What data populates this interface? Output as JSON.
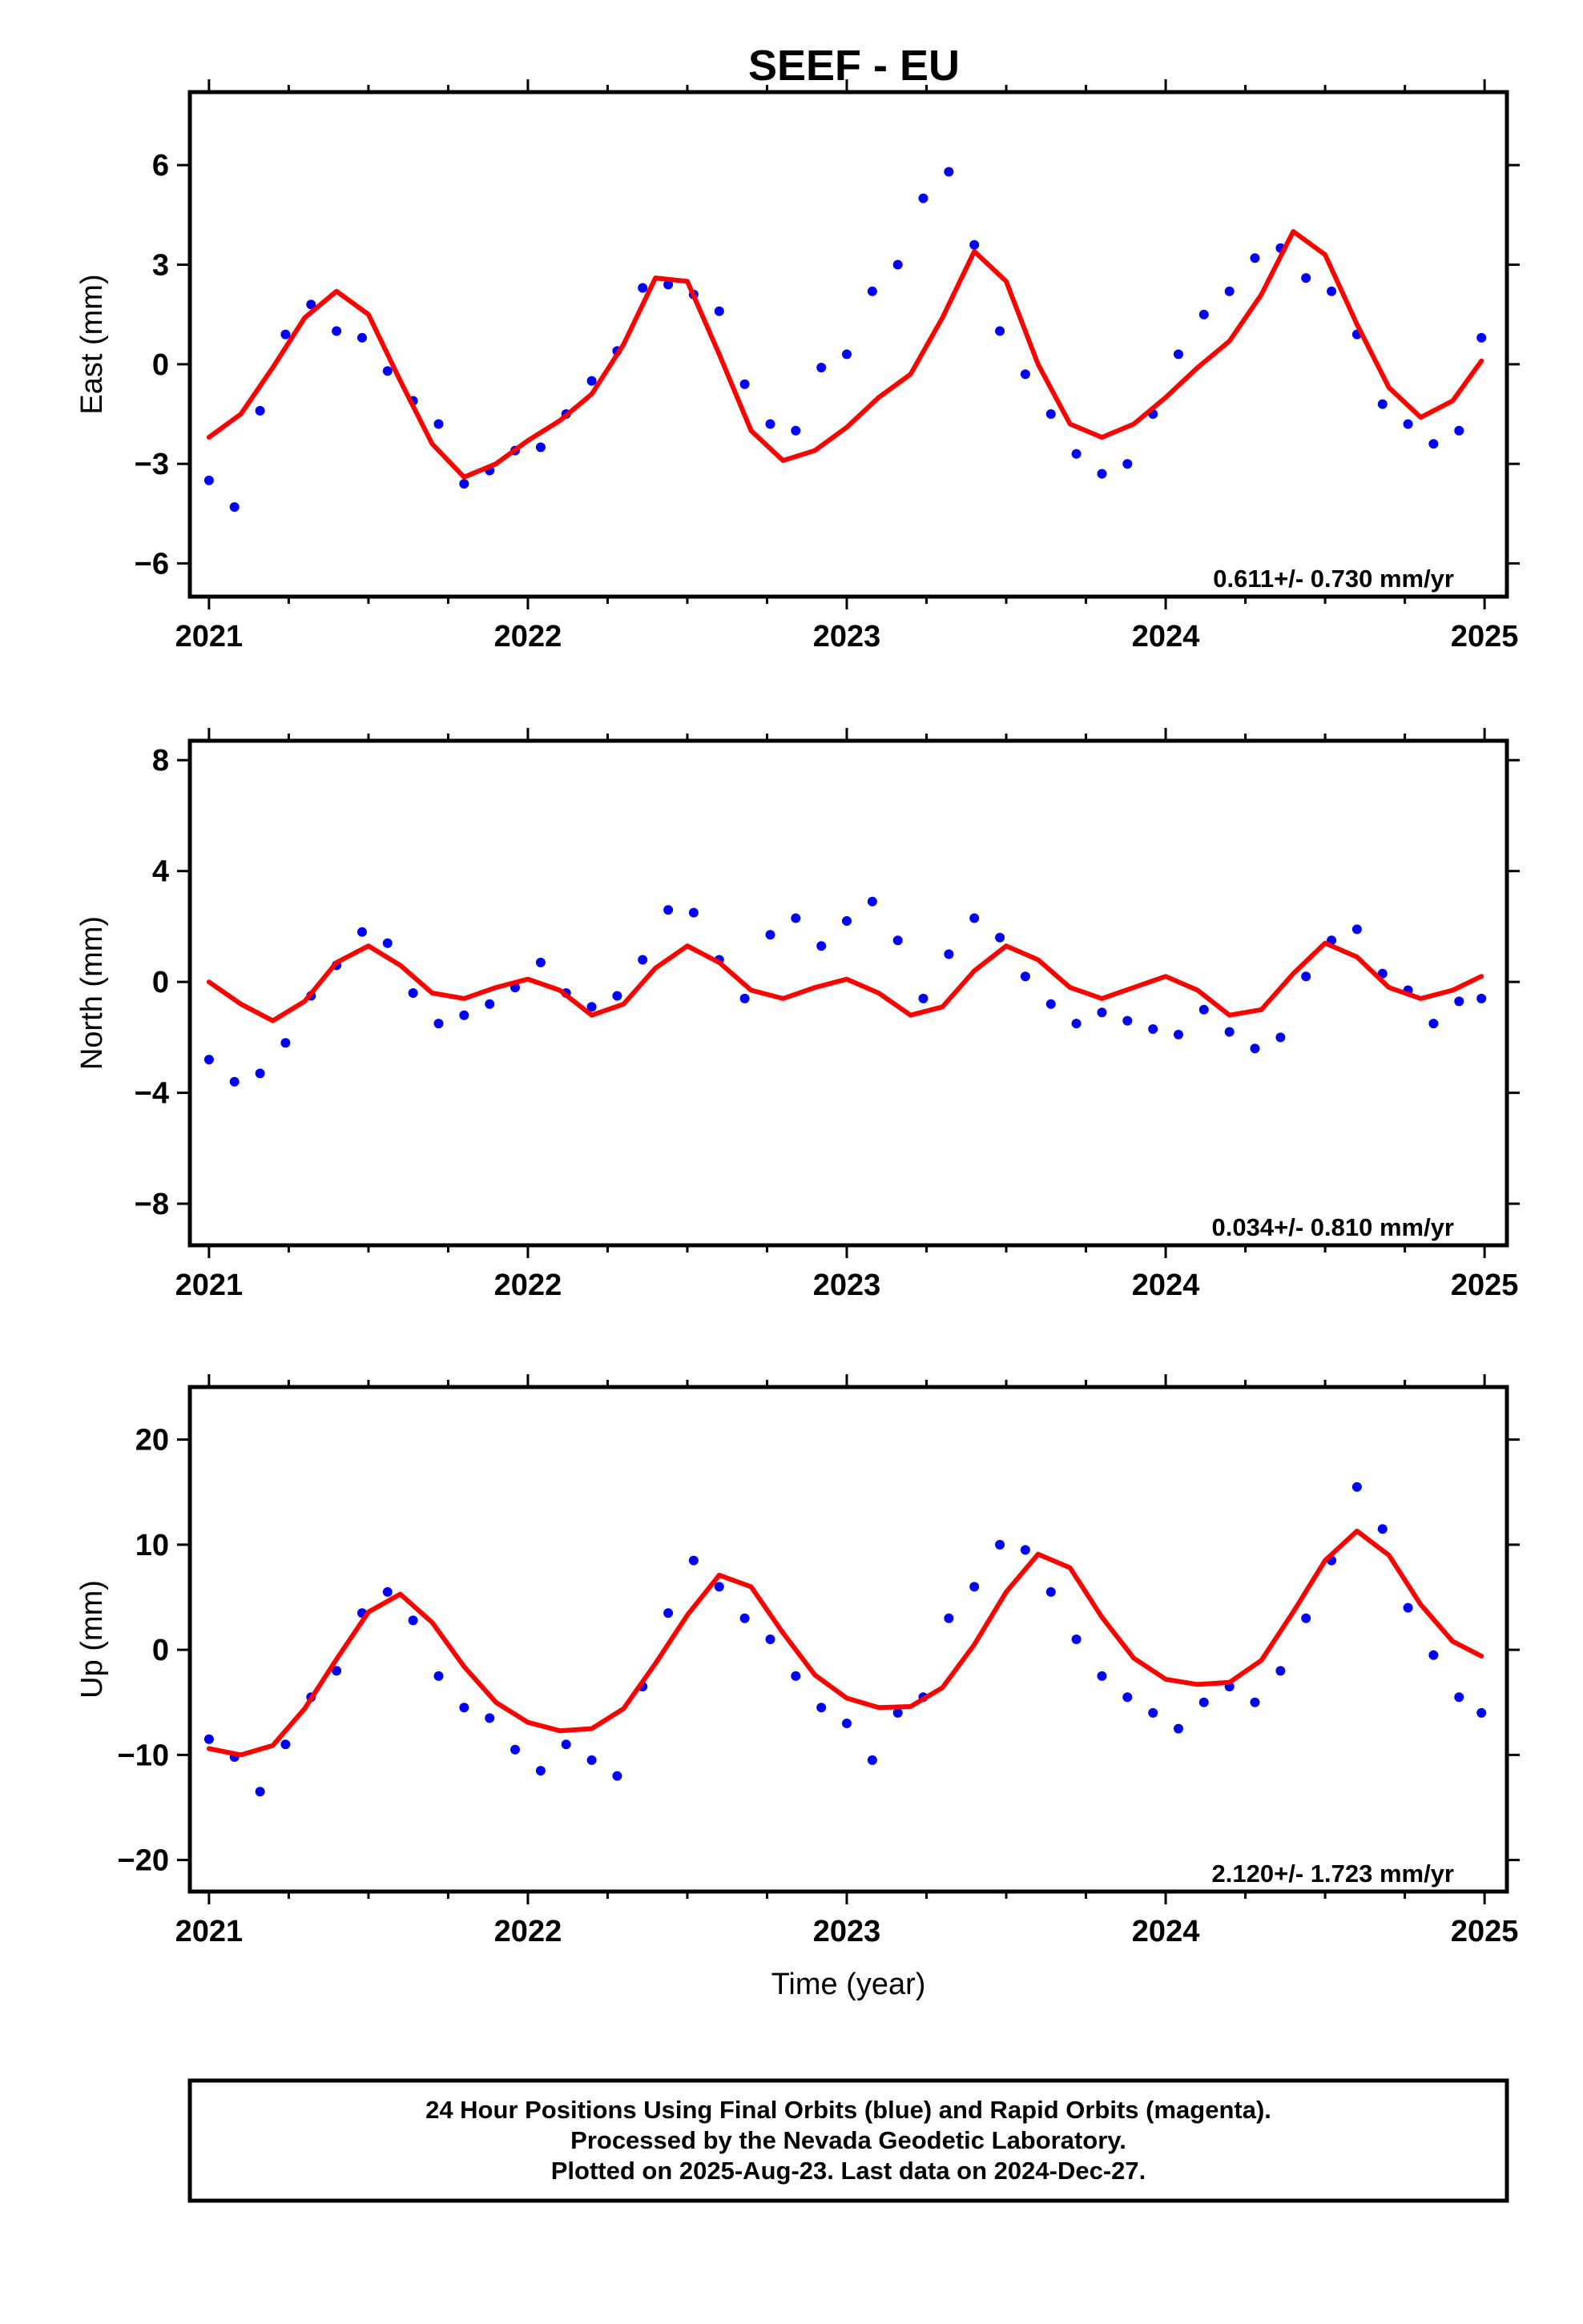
{
  "title": "SEEF - EU",
  "footer": {
    "lines": [
      "24 Hour Positions Using Final Orbits (blue) and Rapid Orbits (magenta).",
      "Processed by the Nevada Geodetic Laboratory.",
      "Plotted on 2025-Aug-23. Last data on 2024-Dec-27."
    ]
  },
  "colors": {
    "final_orbits": "#0000ff",
    "rapid_orbits": "#ff00ff",
    "model": "#ff0000",
    "frame": "#000000"
  },
  "chart_data": [
    {
      "type": "scatter",
      "title": "SEEF - EU",
      "ylabel": "East (mm)",
      "xlabel": "",
      "xlim": [
        2020.94,
        2025.07
      ],
      "ylim": [
        -7.0,
        8.2
      ],
      "x_ticks": [
        2021,
        2022,
        2023,
        2024,
        2025
      ],
      "x_tick_labels": [
        "2021",
        "2022",
        "2023",
        "2024",
        "2025"
      ],
      "y_ticks": [
        -6,
        -3,
        0,
        3,
        6
      ],
      "y_tick_labels": [
        "−6",
        "−3",
        "0",
        "3",
        "6"
      ],
      "rate_label": "0.611+/- 0.730 mm/yr",
      "grid": false,
      "series": [
        {
          "role": "final_orbits",
          "x": [
            2021.0,
            2021.08,
            2021.16,
            2021.24,
            2021.32,
            2021.4,
            2021.48,
            2021.56,
            2021.64,
            2021.72,
            2021.8,
            2021.88,
            2021.96,
            2022.04,
            2022.12,
            2022.2,
            2022.28,
            2022.36,
            2022.44,
            2022.52,
            2022.6,
            2022.68,
            2022.76,
            2022.84,
            2022.92,
            2023.0,
            2023.08,
            2023.16,
            2023.24,
            2023.32,
            2023.4,
            2023.48,
            2023.56,
            2023.64,
            2023.72,
            2023.8,
            2023.88,
            2023.96,
            2024.04,
            2024.12,
            2024.2,
            2024.28,
            2024.36,
            2024.44,
            2024.52,
            2024.6,
            2024.68,
            2024.76,
            2024.84,
            2024.92,
            2024.99
          ],
          "y": [
            -3.5,
            -4.3,
            -1.4,
            0.9,
            1.8,
            1.0,
            0.8,
            -0.2,
            -1.1,
            -1.8,
            -3.6,
            -3.2,
            -2.6,
            -2.5,
            -1.5,
            -0.5,
            0.4,
            2.3,
            2.4,
            2.1,
            1.6,
            -0.6,
            -1.8,
            -2.0,
            -0.1,
            0.3,
            2.2,
            3.0,
            5.0,
            5.8,
            3.6,
            1.0,
            -0.3,
            -1.5,
            -2.7,
            -3.3,
            -3.0,
            -1.5,
            0.3,
            1.5,
            2.2,
            3.2,
            3.5,
            2.6,
            2.2,
            0.9,
            -1.2,
            -1.8,
            -2.4,
            -2.0,
            0.8
          ]
        },
        {
          "role": "model",
          "x": [
            2021.0,
            2021.1,
            2021.2,
            2021.3,
            2021.4,
            2021.5,
            2021.6,
            2021.7,
            2021.8,
            2021.9,
            2022.0,
            2022.1,
            2022.2,
            2022.3,
            2022.4,
            2022.5,
            2022.6,
            2022.7,
            2022.8,
            2022.9,
            2023.0,
            2023.1,
            2023.2,
            2023.3,
            2023.4,
            2023.5,
            2023.6,
            2023.7,
            2023.8,
            2023.9,
            2024.0,
            2024.1,
            2024.2,
            2024.3,
            2024.4,
            2024.5,
            2024.6,
            2024.7,
            2024.8,
            2024.9,
            2024.99
          ],
          "y": [
            -2.2,
            -1.5,
            -0.1,
            1.4,
            2.2,
            1.5,
            -0.5,
            -2.4,
            -3.4,
            -3.0,
            -2.3,
            -1.7,
            -0.9,
            0.6,
            2.6,
            2.5,
            0.3,
            -2.0,
            -2.9,
            -2.6,
            -1.9,
            -1.0,
            -0.3,
            1.4,
            3.4,
            2.5,
            0.0,
            -1.8,
            -2.2,
            -1.8,
            -1.0,
            -0.1,
            0.7,
            2.1,
            4.0,
            3.3,
            1.2,
            -0.7,
            -1.6,
            -1.1,
            0.1
          ]
        }
      ]
    },
    {
      "type": "scatter",
      "ylabel": "North (mm)",
      "xlabel": "",
      "xlim": [
        2020.94,
        2025.07
      ],
      "ylim": [
        -9.5,
        8.7
      ],
      "x_ticks": [
        2021,
        2022,
        2023,
        2024,
        2025
      ],
      "x_tick_labels": [
        "2021",
        "2022",
        "2023",
        "2024",
        "2025"
      ],
      "y_ticks": [
        -8,
        -4,
        0,
        4,
        8
      ],
      "y_tick_labels": [
        "−8",
        "−4",
        "0",
        "4",
        "8"
      ],
      "rate_label": "0.034+/- 0.810 mm/yr",
      "grid": false,
      "series": [
        {
          "role": "final_orbits",
          "x": [
            2021.0,
            2021.08,
            2021.16,
            2021.24,
            2021.32,
            2021.4,
            2021.48,
            2021.56,
            2021.64,
            2021.72,
            2021.8,
            2021.88,
            2021.96,
            2022.04,
            2022.12,
            2022.2,
            2022.28,
            2022.36,
            2022.44,
            2022.52,
            2022.6,
            2022.68,
            2022.76,
            2022.84,
            2022.92,
            2023.0,
            2023.08,
            2023.16,
            2023.24,
            2023.32,
            2023.4,
            2023.48,
            2023.56,
            2023.64,
            2023.72,
            2023.8,
            2023.88,
            2023.96,
            2024.04,
            2024.12,
            2024.2,
            2024.28,
            2024.36,
            2024.44,
            2024.52,
            2024.6,
            2024.68,
            2024.76,
            2024.84,
            2024.92,
            2024.99
          ],
          "y": [
            -2.8,
            -3.6,
            -3.3,
            -2.2,
            -0.5,
            0.6,
            1.8,
            1.4,
            -0.4,
            -1.5,
            -1.2,
            -0.8,
            -0.2,
            0.7,
            -0.4,
            -0.9,
            -0.5,
            0.8,
            2.6,
            2.5,
            0.8,
            -0.6,
            1.7,
            2.3,
            1.3,
            2.2,
            2.9,
            1.5,
            -0.6,
            1.0,
            2.3,
            1.6,
            0.2,
            -0.8,
            -1.5,
            -1.1,
            -1.4,
            -1.7,
            -1.9,
            -1.0,
            -1.8,
            -2.4,
            -2.0,
            0.2,
            1.5,
            1.9,
            0.3,
            -0.3,
            -1.5,
            -0.7,
            -0.6
          ]
        },
        {
          "role": "model",
          "x": [
            2021.0,
            2021.1,
            2021.2,
            2021.3,
            2021.4,
            2021.5,
            2021.6,
            2021.7,
            2021.8,
            2021.9,
            2022.0,
            2022.1,
            2022.2,
            2022.3,
            2022.4,
            2022.5,
            2022.6,
            2022.7,
            2022.8,
            2022.9,
            2023.0,
            2023.1,
            2023.2,
            2023.3,
            2023.4,
            2023.5,
            2023.6,
            2023.7,
            2023.8,
            2023.9,
            2024.0,
            2024.1,
            2024.2,
            2024.3,
            2024.4,
            2024.5,
            2024.6,
            2024.7,
            2024.8,
            2024.9,
            2024.99
          ],
          "y": [
            0.0,
            -0.8,
            -1.4,
            -0.7,
            0.7,
            1.3,
            0.6,
            -0.4,
            -0.6,
            -0.2,
            0.1,
            -0.3,
            -1.2,
            -0.8,
            0.5,
            1.3,
            0.7,
            -0.3,
            -0.6,
            -0.2,
            0.1,
            -0.4,
            -1.2,
            -0.9,
            0.4,
            1.3,
            0.8,
            -0.2,
            -0.6,
            -0.2,
            0.2,
            -0.3,
            -1.2,
            -1.0,
            0.3,
            1.4,
            0.9,
            -0.2,
            -0.6,
            -0.3,
            0.2
          ]
        }
      ]
    },
    {
      "type": "scatter",
      "ylabel": "Up (mm)",
      "xlabel": "Time (year)",
      "xlim": [
        2020.94,
        2025.07
      ],
      "ylim": [
        -23.0,
        25.0
      ],
      "x_ticks": [
        2021,
        2022,
        2023,
        2024,
        2025
      ],
      "x_tick_labels": [
        "2021",
        "2022",
        "2023",
        "2024",
        "2025"
      ],
      "y_ticks": [
        -20,
        -10,
        0,
        10,
        20
      ],
      "y_tick_labels": [
        "−20",
        "−10",
        "0",
        "10",
        "20"
      ],
      "rate_label": "2.120+/- 1.723 mm/yr",
      "grid": false,
      "series": [
        {
          "role": "final_orbits",
          "x": [
            2021.0,
            2021.08,
            2021.16,
            2021.24,
            2021.32,
            2021.4,
            2021.48,
            2021.56,
            2021.64,
            2021.72,
            2021.8,
            2021.88,
            2021.96,
            2022.04,
            2022.12,
            2022.2,
            2022.28,
            2022.36,
            2022.44,
            2022.52,
            2022.6,
            2022.68,
            2022.76,
            2022.84,
            2022.92,
            2023.0,
            2023.08,
            2023.16,
            2023.24,
            2023.32,
            2023.4,
            2023.48,
            2023.56,
            2023.64,
            2023.72,
            2023.8,
            2023.88,
            2023.96,
            2024.04,
            2024.12,
            2024.2,
            2024.28,
            2024.36,
            2024.44,
            2024.52,
            2024.6,
            2024.68,
            2024.76,
            2024.84,
            2024.92,
            2024.99
          ],
          "y": [
            -8.5,
            -10.2,
            -13.5,
            -9.0,
            -4.5,
            -2.0,
            3.5,
            5.5,
            2.8,
            -2.5,
            -5.5,
            -6.5,
            -9.5,
            -11.5,
            -9.0,
            -10.5,
            -12.0,
            -3.5,
            3.5,
            8.5,
            6.0,
            3.0,
            1.0,
            -2.5,
            -5.5,
            -7.0,
            -10.5,
            -6.0,
            -4.5,
            3.0,
            6.0,
            10.0,
            9.5,
            5.5,
            1.0,
            -2.5,
            -4.5,
            -6.0,
            -7.5,
            -5.0,
            -3.5,
            -5.0,
            -2.0,
            3.0,
            8.5,
            15.5,
            11.5,
            4.0,
            -0.5,
            -4.5,
            -6.0
          ]
        },
        {
          "role": "model",
          "x": [
            2021.0,
            2021.1,
            2021.2,
            2021.3,
            2021.4,
            2021.5,
            2021.6,
            2021.7,
            2021.8,
            2021.9,
            2022.0,
            2022.1,
            2022.2,
            2022.3,
            2022.4,
            2022.5,
            2022.6,
            2022.7,
            2022.8,
            2022.9,
            2023.0,
            2023.1,
            2023.2,
            2023.3,
            2023.4,
            2023.5,
            2023.6,
            2023.7,
            2023.8,
            2023.9,
            2024.0,
            2024.1,
            2024.2,
            2024.3,
            2024.4,
            2024.5,
            2024.6,
            2024.7,
            2024.8,
            2024.9,
            2024.99
          ],
          "y": [
            -9.4,
            -10.0,
            -9.1,
            -5.6,
            -0.9,
            3.6,
            5.3,
            2.6,
            -1.6,
            -5.0,
            -6.9,
            -7.7,
            -7.5,
            -5.6,
            -1.3,
            3.3,
            7.1,
            6.0,
            1.6,
            -2.4,
            -4.6,
            -5.5,
            -5.4,
            -3.6,
            0.5,
            5.5,
            9.1,
            7.8,
            3.1,
            -0.8,
            -2.8,
            -3.3,
            -3.1,
            -1.0,
            3.6,
            8.5,
            11.3,
            9.0,
            4.3,
            0.8,
            -0.6
          ]
        }
      ]
    }
  ]
}
